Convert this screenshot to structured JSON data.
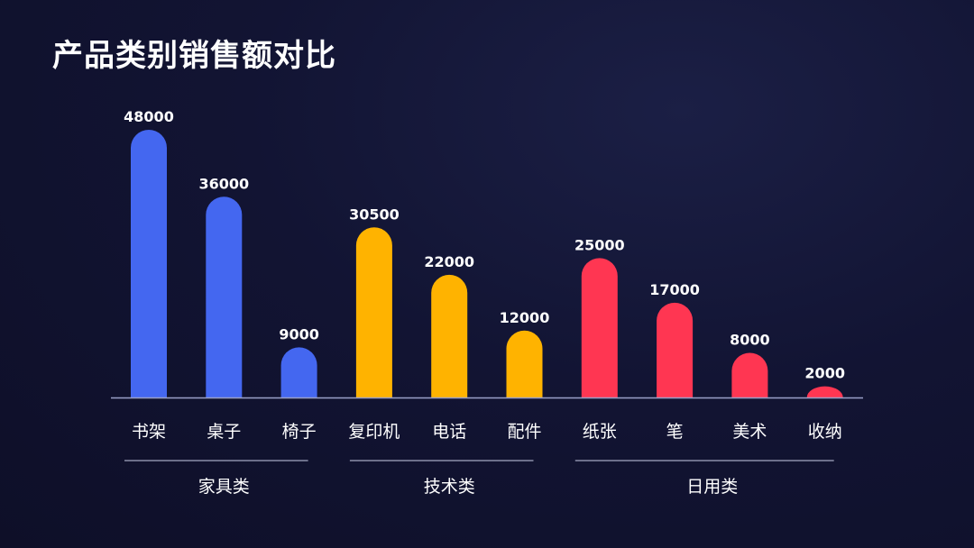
{
  "page": {
    "title": "产品类别销售额对比"
  },
  "colors": {
    "家具类": "#4467f0",
    "技术类": "#ffb300",
    "日用类": "#ff3652",
    "baseline": "#9aa0c8",
    "group_line": "#c9cde6"
  },
  "chart_data": {
    "type": "bar",
    "title": "产品类别销售额对比",
    "xlabel": "",
    "ylabel": "",
    "ylim": [
      0,
      48000
    ],
    "grid": false,
    "categories": [
      "书架",
      "桌子",
      "椅子",
      "复印机",
      "电话",
      "配件",
      "纸张",
      "笔",
      "美术",
      "收纳"
    ],
    "values": [
      48000,
      36000,
      9000,
      30500,
      22000,
      12000,
      25000,
      17000,
      8000,
      2000
    ],
    "groups": [
      {
        "name": "家具类",
        "categories": [
          "书架",
          "桌子",
          "椅子"
        ]
      },
      {
        "name": "技术类",
        "categories": [
          "复印机",
          "电话",
          "配件"
        ]
      },
      {
        "name": "日用类",
        "categories": [
          "纸张",
          "笔",
          "美术",
          "收纳"
        ]
      }
    ]
  }
}
